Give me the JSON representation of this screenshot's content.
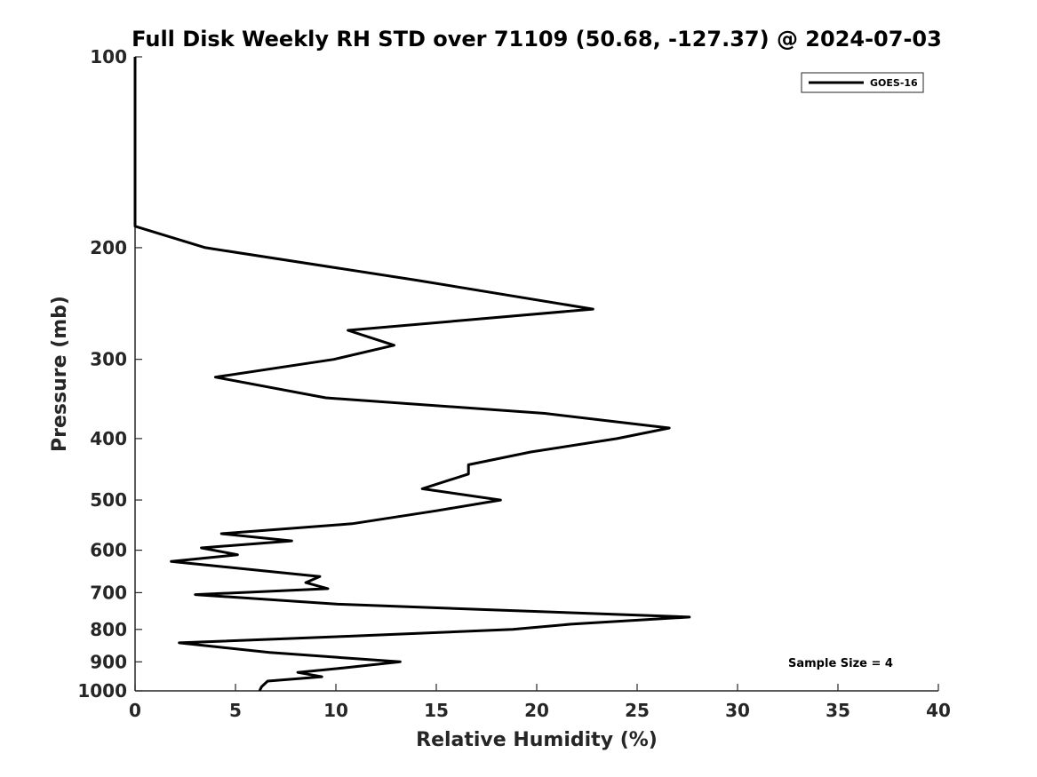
{
  "chart_data": {
    "type": "line",
    "title": "Full Disk Weekly RH STD over 71109 (50.68, -127.37) @ 2024-07-03",
    "xlabel": "Relative Humidity (%)",
    "ylabel": "Pressure (mb)",
    "xlim": [
      0,
      40
    ],
    "ylim": [
      100,
      1000
    ],
    "y_scale": "log",
    "y_reversed": true,
    "xticks": [
      "0",
      "5",
      "10",
      "15",
      "20",
      "25",
      "30",
      "35",
      "40"
    ],
    "yticks": [
      "100",
      "200",
      "300",
      "400",
      "500",
      "600",
      "700",
      "800",
      "900",
      "1000"
    ],
    "grid": false,
    "legend_position": "top-right",
    "annotation": "Sample Size = 4",
    "series": [
      {
        "name": "GOES-16",
        "color": "#000000",
        "points": [
          [
            0,
            100
          ],
          [
            0,
            125
          ],
          [
            0,
            150
          ],
          [
            0,
            175
          ],
          [
            0,
            185
          ],
          [
            3.5,
            200
          ],
          [
            14,
            225
          ],
          [
            22.8,
            250
          ],
          [
            10.6,
            270
          ],
          [
            12.9,
            285
          ],
          [
            9.9,
            300
          ],
          [
            4,
            320
          ],
          [
            9.5,
            345
          ],
          [
            20.4,
            365
          ],
          [
            26.6,
            385
          ],
          [
            24,
            400
          ],
          [
            19.7,
            420
          ],
          [
            16.6,
            440
          ],
          [
            16.6,
            455
          ],
          [
            14.3,
            480
          ],
          [
            18.2,
            500
          ],
          [
            15,
            520
          ],
          [
            10.8,
            545
          ],
          [
            4.3,
            565
          ],
          [
            7.8,
            580
          ],
          [
            3.3,
            595
          ],
          [
            5.1,
            610
          ],
          [
            1.8,
            625
          ],
          [
            9.2,
            660
          ],
          [
            8.5,
            675
          ],
          [
            9.6,
            690
          ],
          [
            3,
            705
          ],
          [
            10.1,
            730
          ],
          [
            27.6,
            765
          ],
          [
            21.7,
            785
          ],
          [
            18.8,
            800
          ],
          [
            10.6,
            820
          ],
          [
            2.2,
            840
          ],
          [
            6.7,
            870
          ],
          [
            13.2,
            900
          ],
          [
            10.4,
            920
          ],
          [
            8.1,
            935
          ],
          [
            9.3,
            950
          ],
          [
            6.6,
            965
          ],
          [
            6.3,
            985
          ],
          [
            6.2,
            1000
          ]
        ]
      }
    ]
  }
}
